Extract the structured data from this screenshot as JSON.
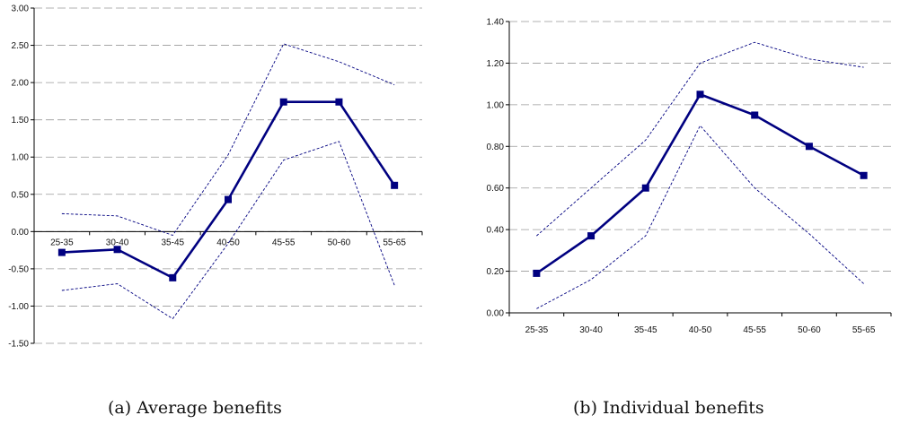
{
  "colors": {
    "series": "#000080",
    "grid": "#999999",
    "axis": "#000000"
  },
  "chart_data": [
    {
      "type": "line",
      "caption_label": "(a)",
      "caption_text": "Average benefits",
      "categories": [
        "25-35",
        "30-40",
        "35-45",
        "40-50",
        "45-55",
        "50-60",
        "55-65"
      ],
      "yticks": [
        "3.00",
        "2.50",
        "2.00",
        "1.50",
        "1.00",
        "0.50",
        "0.00",
        "-0.50",
        "-1.00",
        "-1.50"
      ],
      "ylim": [
        -1.5,
        3.0
      ],
      "grid": true,
      "series": [
        {
          "style": "solid-markers",
          "values": [
            -0.28,
            -0.24,
            -0.62,
            0.43,
            1.74,
            1.74,
            0.62
          ]
        },
        {
          "style": "dashed-upper",
          "values": [
            0.24,
            0.21,
            -0.05,
            1.03,
            2.52,
            2.28,
            1.97
          ]
        },
        {
          "style": "dashed-lower",
          "values": [
            -0.79,
            -0.7,
            -1.17,
            -0.16,
            0.96,
            1.21,
            -0.72
          ]
        }
      ]
    },
    {
      "type": "line",
      "caption_label": "(b)",
      "caption_text": "Individual benefits",
      "categories": [
        "25-35",
        "30-40",
        "35-45",
        "40-50",
        "45-55",
        "50-60",
        "55-65"
      ],
      "yticks": [
        "1.40",
        "1.20",
        "1.00",
        "0.80",
        "0.60",
        "0.40",
        "0.20",
        "0.00"
      ],
      "ylim": [
        0,
        1.4
      ],
      "grid": true,
      "series": [
        {
          "style": "solid-markers",
          "values": [
            0.19,
            0.37,
            0.6,
            1.05,
            0.95,
            0.8,
            0.66
          ]
        },
        {
          "style": "dashed-upper",
          "values": [
            0.37,
            0.6,
            0.83,
            1.2,
            1.3,
            1.22,
            1.18
          ]
        },
        {
          "style": "dashed-lower",
          "values": [
            0.02,
            0.16,
            0.37,
            0.9,
            0.6,
            0.38,
            0.14
          ]
        }
      ]
    }
  ]
}
